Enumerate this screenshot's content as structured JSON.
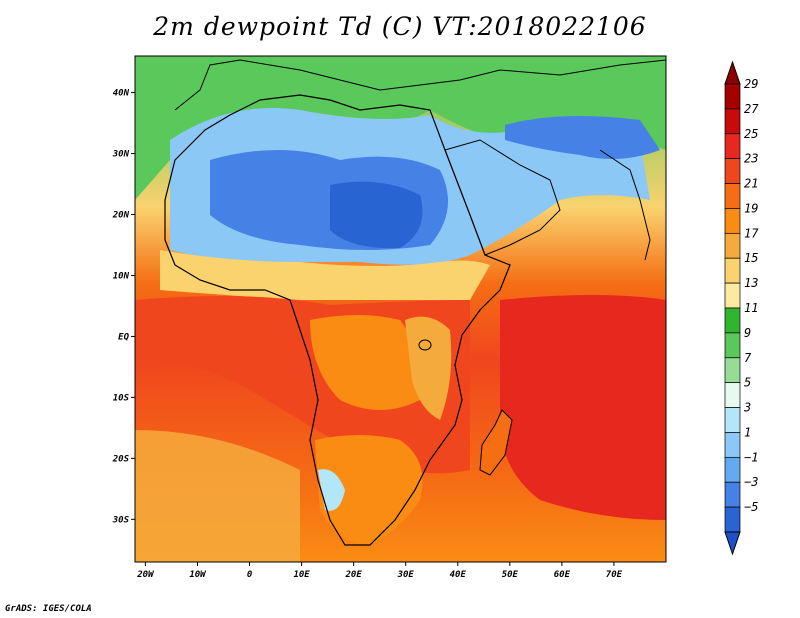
{
  "title": "2m dewpoint Td (C) VT:2018022106",
  "credit": "GrADS: IGES/COLA",
  "axes": {
    "lat_ticks": [
      {
        "label": "40N",
        "lat": 40
      },
      {
        "label": "30N",
        "lat": 30
      },
      {
        "label": "20N",
        "lat": 20
      },
      {
        "label": "10N",
        "lat": 10
      },
      {
        "label": "EQ",
        "lat": 0
      },
      {
        "label": "10S",
        "lat": -10
      },
      {
        "label": "20S",
        "lat": -20
      },
      {
        "label": "30S",
        "lat": -30
      }
    ],
    "lon_ticks": [
      {
        "label": "20W",
        "lon": -20
      },
      {
        "label": "10W",
        "lon": -10
      },
      {
        "label": "0",
        "lon": 0
      },
      {
        "label": "10E",
        "lon": 10
      },
      {
        "label": "20E",
        "lon": 20
      },
      {
        "label": "30E",
        "lon": 30
      },
      {
        "label": "40E",
        "lon": 40
      },
      {
        "label": "50E",
        "lon": 50
      },
      {
        "label": "60E",
        "lon": 60
      },
      {
        "label": "70E",
        "lon": 70
      }
    ],
    "lon_range": [
      -22,
      80
    ],
    "lat_range": [
      -37,
      46
    ]
  },
  "colorbar": {
    "levels": [
      {
        "label": "29",
        "color": "#a50000"
      },
      {
        "label": "27",
        "color": "#c80a0a"
      },
      {
        "label": "25",
        "color": "#e6281e"
      },
      {
        "label": "23",
        "color": "#f0461e"
      },
      {
        "label": "21",
        "color": "#f56e14"
      },
      {
        "label": "19",
        "color": "#fa8c14"
      },
      {
        "label": "17",
        "color": "#f5aa3c"
      },
      {
        "label": "15",
        "color": "#fad26e"
      },
      {
        "label": "13",
        "color": "#faeba0"
      },
      {
        "label": "11",
        "color": "#32b432"
      },
      {
        "label": "9",
        "color": "#5ac85a"
      },
      {
        "label": "7",
        "color": "#96dc96"
      },
      {
        "label": "5",
        "color": "#e6faf0"
      },
      {
        "label": "3",
        "color": "#b4e6fa"
      },
      {
        "label": "1",
        "color": "#8cc8f5"
      },
      {
        "label": "−1",
        "color": "#64aaf0"
      },
      {
        "label": "−3",
        "color": "#4682e6"
      },
      {
        "label": "−5",
        "color": "#2864d2"
      }
    ],
    "top_color": "#8c0000",
    "bottom_color": "#1e50c8"
  }
}
